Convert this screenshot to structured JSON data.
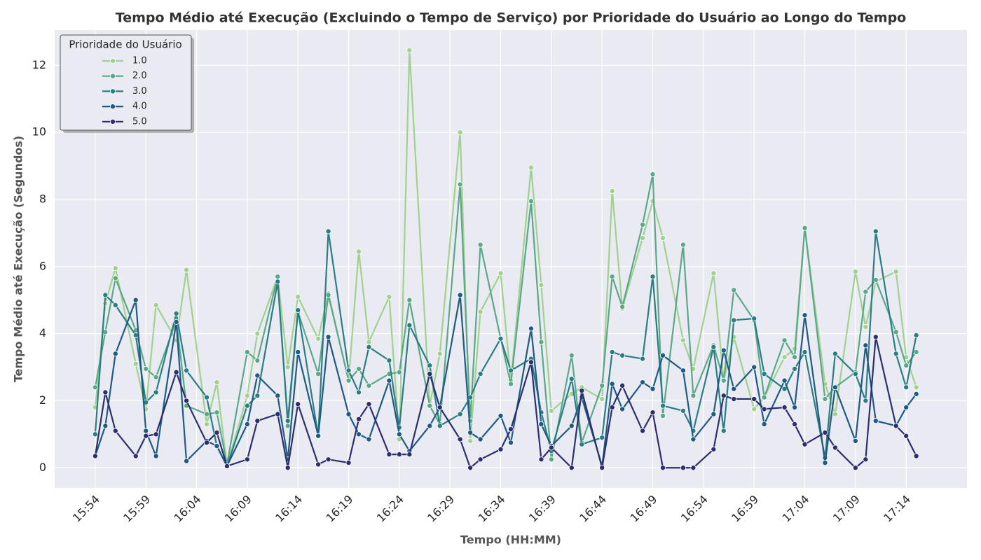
{
  "chart_data": {
    "type": "line",
    "title": "Tempo Médio até Execução (Excluindo o Tempo de Serviço) por Prioridade do Usuário ao Longo do Tempo",
    "xlabel": "Tempo (HH:MM)",
    "ylabel": "Tempo Médio até Execução (Segundos)",
    "legend_title": "Prioridade do Usuário",
    "legend_position": "upper left",
    "grid": true,
    "x": [
      "15:54",
      "15:55",
      "15:56",
      "15:58",
      "15:59",
      "16:00",
      "16:02",
      "16:03",
      "16:05",
      "16:06",
      "16:07",
      "16:09",
      "16:10",
      "16:12",
      "16:13",
      "16:14",
      "16:16",
      "16:17",
      "16:19",
      "16:20",
      "16:21",
      "16:23",
      "16:24",
      "16:25",
      "16:27",
      "16:28",
      "16:30",
      "16:31",
      "16:32",
      "16:34",
      "16:35",
      "16:37",
      "16:38",
      "16:39",
      "16:41",
      "16:42",
      "16:44",
      "16:45",
      "16:46",
      "16:48",
      "16:49",
      "16:50",
      "16:52",
      "16:53",
      "16:55",
      "16:56",
      "16:57",
      "16:59",
      "17:00",
      "17:02",
      "17:03",
      "17:04",
      "17:06",
      "17:07",
      "17:09",
      "17:10",
      "17:11",
      "17:13",
      "17:14",
      "17:15"
    ],
    "xlim": [
      "15:50",
      "17:20"
    ],
    "xticks": [
      "15:54",
      "15:59",
      "16:04",
      "16:09",
      "16:14",
      "16:19",
      "16:24",
      "16:29",
      "16:34",
      "16:39",
      "16:44",
      "16:49",
      "16:54",
      "16:59",
      "17:04",
      "17:09",
      "17:14"
    ],
    "ylim": [
      -0.6,
      13.05
    ],
    "yticks": [
      0,
      2,
      4,
      6,
      8,
      10,
      12
    ],
    "series": [
      {
        "name": "1.0",
        "color": "#a1d18f",
        "values": [
          1.8,
          4.9,
          5.95,
          3.1,
          1.75,
          4.85,
          3.8,
          5.9,
          1.3,
          2.55,
          0.05,
          2.15,
          4.0,
          5.7,
          3.0,
          5.1,
          3.85,
          5.2,
          2.6,
          6.45,
          3.75,
          5.1,
          0.85,
          12.45,
          1.85,
          3.4,
          10.0,
          0.8,
          4.65,
          5.8,
          2.6,
          8.95,
          5.45,
          1.7,
          2.2,
          2.4,
          2.05,
          8.25,
          4.75,
          6.85,
          7.95,
          6.85,
          3.8,
          2.95,
          5.8,
          2.6,
          3.9,
          1.75,
          2.1,
          3.3,
          3.55,
          7.15,
          2.5,
          1.6,
          5.85,
          4.2,
          5.55,
          5.85,
          3.3,
          2.4
        ]
      },
      {
        "name": "2.0",
        "color": "#5aa889",
        "values": [
          2.4,
          4.05,
          5.65,
          4.1,
          2.95,
          2.7,
          4.4,
          1.85,
          1.6,
          1.65,
          0.1,
          3.45,
          3.2,
          5.7,
          1.25,
          4.65,
          2.8,
          5.15,
          2.6,
          2.95,
          2.45,
          2.8,
          2.85,
          5.0,
          1.85,
          1.3,
          8.45,
          1.4,
          6.65,
          3.85,
          2.5,
          7.95,
          3.75,
          0.25,
          3.35,
          0.75,
          2.45,
          5.7,
          4.8,
          7.25,
          8.75,
          1.55,
          6.65,
          2.15,
          3.65,
          2.6,
          5.3,
          4.4,
          2.1,
          3.8,
          3.3,
          7.15,
          2.05,
          2.4,
          2.85,
          5.25,
          5.6,
          4.05,
          3.05,
          3.45
        ]
      },
      {
        "name": "3.0",
        "color": "#2b7d84",
        "values": [
          1.0,
          5.15,
          4.85,
          3.95,
          1.95,
          2.25,
          4.6,
          2.9,
          2.1,
          0.65,
          0.05,
          1.85,
          2.15,
          5.55,
          1.4,
          4.7,
          0.95,
          7.05,
          2.9,
          2.25,
          3.6,
          3.2,
          1.2,
          4.25,
          3.05,
          1.25,
          1.6,
          2.1,
          2.8,
          3.85,
          2.9,
          3.25,
          1.65,
          0.5,
          2.65,
          0.7,
          0.9,
          3.45,
          3.35,
          3.25,
          5.7,
          1.85,
          1.7,
          1.1,
          3.6,
          1.1,
          4.4,
          4.45,
          2.8,
          2.35,
          2.95,
          3.45,
          0.3,
          3.4,
          2.8,
          2.0,
          7.05,
          3.4,
          2.4,
          3.95
        ]
      },
      {
        "name": "4.0",
        "color": "#1e5a82",
        "values": [
          0.35,
          1.25,
          3.4,
          5.0,
          1.1,
          0.35,
          4.35,
          0.2,
          0.8,
          0.65,
          0.05,
          1.3,
          2.75,
          2.15,
          0.25,
          3.45,
          0.95,
          3.9,
          1.6,
          1.0,
          0.85,
          2.6,
          1.0,
          0.5,
          1.25,
          1.8,
          5.15,
          1.05,
          0.85,
          1.55,
          0.75,
          4.15,
          1.3,
          0.65,
          1.25,
          2.1,
          0.05,
          2.5,
          1.75,
          2.55,
          2.35,
          3.35,
          2.9,
          0.85,
          1.6,
          3.5,
          2.35,
          3.0,
          1.3,
          2.6,
          1.8,
          4.55,
          0.15,
          2.4,
          0.8,
          3.65,
          1.4,
          1.25,
          1.8,
          2.2
        ]
      },
      {
        "name": "5.0",
        "color": "#2c2f6e",
        "values": [
          0.35,
          2.25,
          1.1,
          0.35,
          0.95,
          1.0,
          2.85,
          2.0,
          0.75,
          1.05,
          0.05,
          0.25,
          1.4,
          1.6,
          0.0,
          1.9,
          0.1,
          0.25,
          0.15,
          1.45,
          1.9,
          0.4,
          0.4,
          0.4,
          2.8,
          1.8,
          0.85,
          0.0,
          0.25,
          0.55,
          1.15,
          3.15,
          0.25,
          0.6,
          0.0,
          2.3,
          0.0,
          1.8,
          2.45,
          1.1,
          1.65,
          0.0,
          0.0,
          0.0,
          0.55,
          2.15,
          2.05,
          2.05,
          1.75,
          1.8,
          1.3,
          0.7,
          1.05,
          0.6,
          0.0,
          0.25,
          3.9,
          1.25,
          0.95,
          0.35
        ]
      }
    ]
  }
}
